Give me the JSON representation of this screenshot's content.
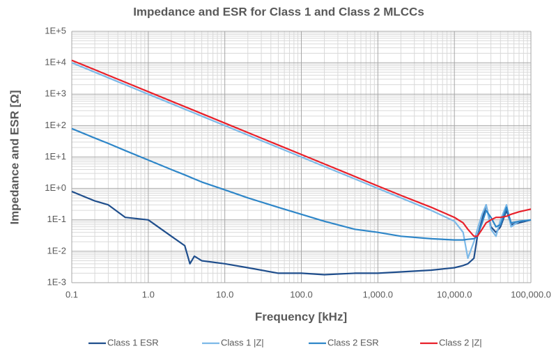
{
  "chart_data": {
    "type": "line",
    "title": "Impedance and ESR for Class 1 and Class 2 MLCCs",
    "x_label": "Frequency [kHz]",
    "y_label": "Impedance and ESR [Ω]",
    "x_log": true,
    "y_log": true,
    "grid": true,
    "minor_grid": true,
    "legend": "bottom",
    "xlim": [
      0.1,
      100000
    ],
    "ylim": [
      0.001,
      100000
    ],
    "xticks": [
      0.1,
      {
        "value": 1,
        "label": "1.0"
      },
      {
        "value": 10,
        "label": "10.0"
      },
      {
        "value": 100,
        "label": "100.0"
      },
      {
        "value": 1000,
        "label": "1,000.0"
      },
      {
        "value": 10000,
        "label": "10,000.0"
      },
      {
        "value": 100000,
        "label": "100,000.0"
      }
    ],
    "yticks": [
      {
        "value": 0.001,
        "label": "1E-3"
      },
      {
        "value": 0.01,
        "label": "1E-2"
      },
      {
        "value": 0.1,
        "label": "1E-1"
      },
      {
        "value": 1,
        "label": "1E+0"
      },
      {
        "value": 10,
        "label": "1E+1"
      },
      {
        "value": 100,
        "label": "1E+2"
      },
      {
        "value": 1000,
        "label": "1E+3"
      },
      {
        "value": 10000,
        "label": "1E+4"
      },
      {
        "value": 100000,
        "label": "1E+5"
      }
    ],
    "x": [
      0.1,
      0.2,
      0.3,
      0.5,
      1,
      2,
      3,
      3.5,
      4,
      5,
      10,
      20,
      50,
      100,
      200,
      500,
      1000,
      2000,
      5000,
      10000,
      13000,
      15000,
      18000,
      20000,
      23000,
      26000,
      30000,
      35000,
      40000,
      48000,
      55000,
      70000,
      100000
    ],
    "series": [
      {
        "name": "Class 1 ESR",
        "color": "#1f4e8c",
        "values": [
          0.8,
          0.4,
          0.3,
          0.12,
          0.1,
          0.03,
          0.015,
          0.004,
          0.007,
          0.005,
          0.004,
          0.003,
          0.002,
          0.002,
          0.0018,
          0.002,
          0.002,
          0.0022,
          0.0025,
          0.003,
          0.0035,
          0.004,
          0.006,
          0.03,
          0.1,
          0.3,
          0.06,
          0.04,
          0.06,
          0.2,
          0.07,
          0.08,
          0.1
        ]
      },
      {
        "name": "Class 1 |Z|",
        "color": "#7cb9e8",
        "values": [
          10000,
          5000,
          3333,
          2000,
          1000,
          500,
          333,
          286,
          250,
          200,
          100,
          50,
          20,
          10,
          5,
          2,
          1,
          0.5,
          0.2,
          0.09,
          0.04,
          0.006,
          0.02,
          0.05,
          0.15,
          0.3,
          0.05,
          0.03,
          0.1,
          0.3,
          0.06,
          0.09,
          0.1
        ]
      },
      {
        "name": "Class 2 ESR",
        "color": "#2e86c8",
        "values": [
          80,
          40,
          27,
          16,
          8,
          4,
          2.7,
          2.3,
          2,
          1.6,
          0.9,
          0.5,
          0.25,
          0.15,
          0.09,
          0.05,
          0.04,
          0.03,
          0.025,
          0.023,
          0.023,
          0.024,
          0.025,
          0.03,
          0.08,
          0.2,
          0.12,
          0.06,
          0.07,
          0.25,
          0.08,
          0.09,
          0.1
        ]
      },
      {
        "name": "Class 2 |Z|",
        "color": "#e8202a",
        "values": [
          12000,
          6000,
          4000,
          2400,
          1200,
          600,
          400,
          343,
          300,
          240,
          120,
          60,
          24,
          12,
          6,
          2.4,
          1.2,
          0.6,
          0.25,
          0.12,
          0.08,
          0.05,
          0.03,
          0.03,
          0.05,
          0.08,
          0.1,
          0.12,
          0.12,
          0.13,
          0.15,
          0.18,
          0.22
        ]
      }
    ]
  }
}
